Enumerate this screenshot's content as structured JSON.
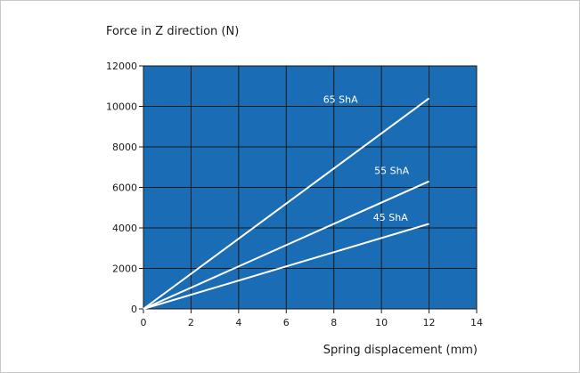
{
  "chart_data": {
    "type": "line",
    "title": "",
    "ylabel": "Force in Z direction (N)",
    "xlabel": "Spring displacement (mm)",
    "xlim": [
      0,
      14
    ],
    "ylim": [
      0,
      12000
    ],
    "x_ticks": [
      0,
      2,
      4,
      6,
      8,
      10,
      12,
      14
    ],
    "y_ticks": [
      0,
      2000,
      4000,
      6000,
      8000,
      10000,
      12000
    ],
    "grid": true,
    "legend": "inline labels",
    "colors": {
      "plot_background": "#1a6cb5",
      "grid": "#1a1a1a",
      "series_line": "#ffffff"
    },
    "series": [
      {
        "name": "65 ShA",
        "x": [
          0,
          12
        ],
        "y": [
          0,
          10400
        ]
      },
      {
        "name": "55 ShA",
        "x": [
          0,
          12
        ],
        "y": [
          0,
          6300
        ]
      },
      {
        "name": "45 ShA",
        "x": [
          0,
          12
        ],
        "y": [
          0,
          4200
        ]
      }
    ]
  }
}
